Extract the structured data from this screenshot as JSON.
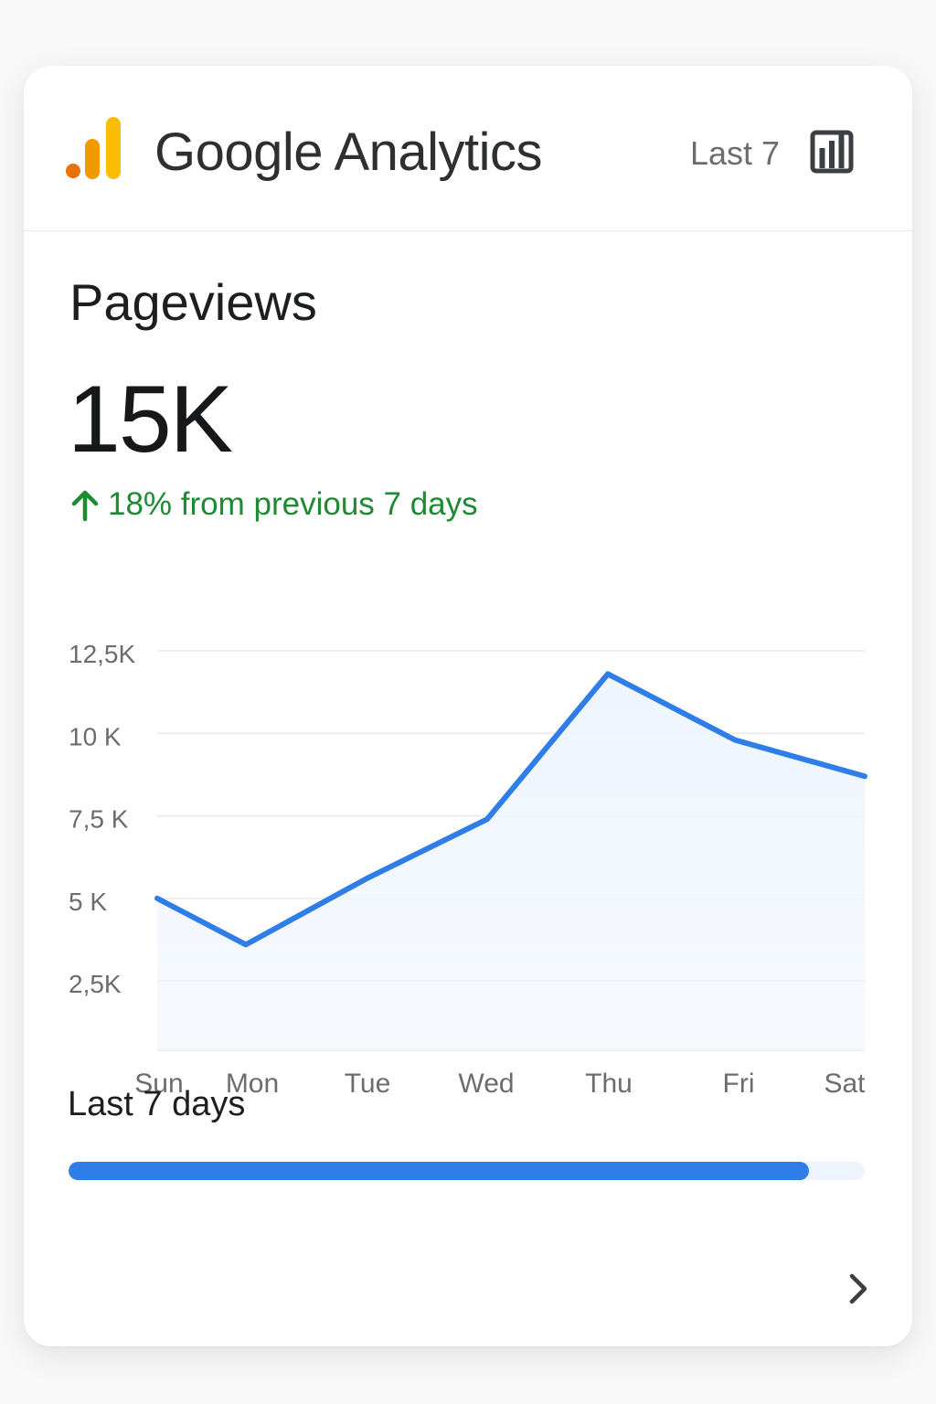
{
  "header": {
    "brand": "Google Analytics",
    "range_label": "Last 7",
    "logo_icon": "google-analytics-logo",
    "chart_toggle_icon": "bar-chart-icon",
    "logo_colors": [
      "#e8710a",
      "#f29900",
      "#fbbc04"
    ]
  },
  "metric": {
    "title": "Pageviews",
    "value": "15K",
    "delta_icon": "arrow-up-icon",
    "delta_text": "18% from previous 7 days",
    "delta_color": "#1e8a31"
  },
  "chart_data": {
    "type": "area",
    "categories": [
      "Sun",
      "Mon",
      "Tue",
      "Wed",
      "Thu",
      "Fri",
      "Sat"
    ],
    "series": [
      {
        "values": [
          5000,
          3600,
          5600,
          7400,
          11800,
          9800,
          8700
        ]
      }
    ],
    "y_ticks": [
      "12,5K",
      "10 K",
      "7,5 K",
      "5 K",
      "2,5K"
    ],
    "y_tick_values": [
      12500,
      10000,
      7500,
      5000,
      2500
    ],
    "ylim": [
      400,
      12500
    ],
    "grid": true,
    "line_color": "#2f7de8",
    "fill_color": "#eef5fd"
  },
  "period": {
    "label": "Last 7 days",
    "progress": 0.93
  },
  "footer": {
    "next_icon": "chevron-right-icon"
  }
}
